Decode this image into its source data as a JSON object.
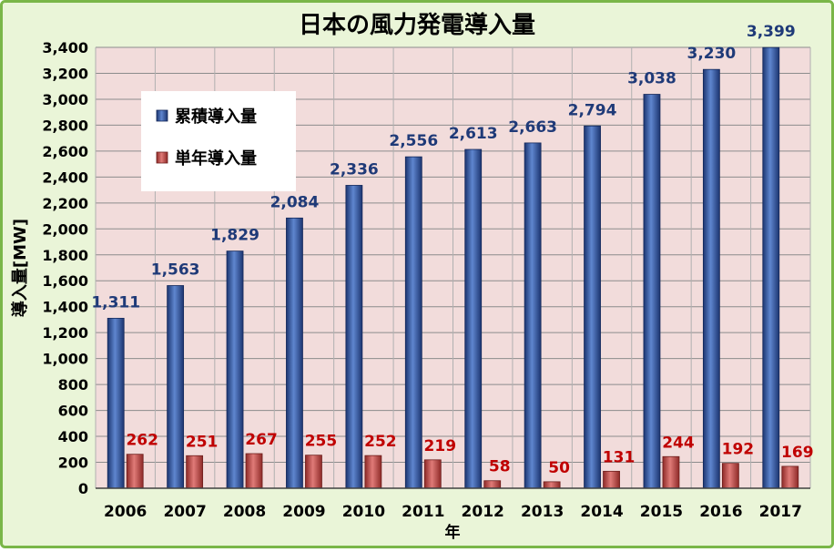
{
  "chart_data": {
    "type": "bar",
    "title": "日本の風力発電導入量",
    "xlabel": "年",
    "ylabel": "導入量[MW]",
    "categories": [
      "2006",
      "2007",
      "2008",
      "2009",
      "2010",
      "2011",
      "2012",
      "2013",
      "2014",
      "2015",
      "2016",
      "2017"
    ],
    "series": [
      {
        "name": "累積導入量",
        "color": "#2e4f9a",
        "label_color": "#1f3a78",
        "values": [
          1311,
          1563,
          1829,
          2084,
          2336,
          2556,
          2613,
          2663,
          2794,
          3038,
          3230,
          3399
        ],
        "labels": [
          "1,311",
          "1,563",
          "1,829",
          "2,084",
          "2,336",
          "2,556",
          "2,613",
          "2,663",
          "2,794",
          "3,038",
          "3,230",
          "3,399"
        ]
      },
      {
        "name": "単年導入量",
        "color": "#c0504d",
        "label_color": "#c00000",
        "values": [
          262,
          251,
          267,
          255,
          252,
          219,
          58,
          50,
          131,
          244,
          192,
          169
        ],
        "labels": [
          "262",
          "251",
          "267",
          "255",
          "252",
          "219",
          "58",
          "50",
          "131",
          "244",
          "192",
          "169"
        ]
      }
    ],
    "ylim": [
      0,
      3400
    ],
    "yticks": [
      0,
      200,
      400,
      600,
      800,
      1000,
      1200,
      1400,
      1600,
      1800,
      2000,
      2200,
      2400,
      2600,
      2800,
      3000,
      3200,
      3400
    ],
    "ytick_labels": [
      "0",
      "200",
      "400",
      "600",
      "800",
      "1,000",
      "1,200",
      "1,400",
      "1,600",
      "1,800",
      "2,000",
      "2,200",
      "2,400",
      "2,600",
      "2,800",
      "3,000",
      "3,200",
      "3,400"
    ],
    "grid": true,
    "legend": "upper-left",
    "plot_background": "#f2dcdb",
    "page_background": "#eaf5d8",
    "border_color": "#7ab648"
  }
}
